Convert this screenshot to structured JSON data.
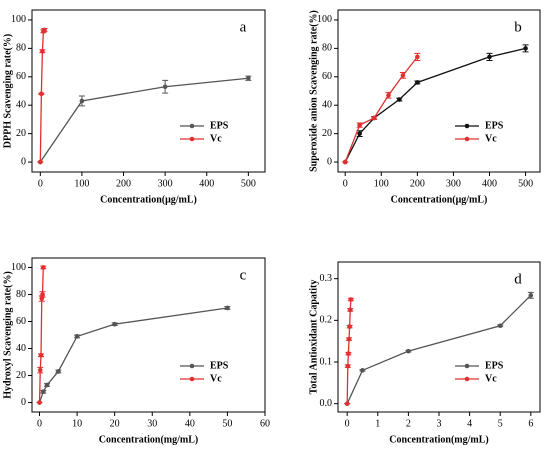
{
  "chart_data": [
    {
      "type": "line",
      "label": "a",
      "xlabel": "Concentration(μg/mL)",
      "ylabel": "DPPH Scavenging rate(%)",
      "xlim": [
        -20,
        540
      ],
      "xticks": [
        0,
        100,
        200,
        300,
        400,
        500
      ],
      "ylim": [
        -7,
        107
      ],
      "yticks": [
        0,
        20,
        40,
        60,
        80,
        100
      ],
      "legend": "lower right",
      "series": [
        {
          "name": "EPS",
          "color": "#555555",
          "x": [
            0,
            100,
            300,
            500
          ],
          "values": [
            0,
            43,
            53,
            59
          ],
          "errors": [
            0,
            3.5,
            4.5,
            1.5
          ]
        },
        {
          "name": "Vc",
          "color": "#e03030",
          "x": [
            0,
            2.5,
            5,
            7.5,
            10
          ],
          "values": [
            0,
            48,
            78,
            92,
            93
          ],
          "errors": [
            0,
            0.5,
            1,
            1,
            1
          ]
        }
      ]
    },
    {
      "type": "line",
      "label": "b",
      "xlabel": "Concentration(μg/mL)",
      "ylabel": "Superoxide anion Scavenging rate(%)",
      "xlim": [
        -20,
        540
      ],
      "xticks": [
        0,
        100,
        200,
        300,
        400,
        500
      ],
      "ylim": [
        -7,
        107
      ],
      "yticks": [
        0,
        20,
        40,
        60,
        80,
        100
      ],
      "legend": "lower right",
      "series": [
        {
          "name": "EPS",
          "color": "#111111",
          "x": [
            0,
            40,
            80,
            150,
            200,
            400,
            500
          ],
          "values": [
            0,
            20,
            31,
            44,
            56,
            74,
            80
          ],
          "errors": [
            0,
            2,
            1,
            1,
            1,
            2.5,
            2.5
          ]
        },
        {
          "name": "Vc",
          "color": "#e03030",
          "x": [
            0,
            40,
            80,
            120,
            160,
            200
          ],
          "values": [
            0,
            26,
            31,
            47,
            61,
            74
          ],
          "errors": [
            0,
            1.5,
            1,
            2,
            2,
            2.5
          ]
        }
      ]
    },
    {
      "type": "line",
      "label": "c",
      "xlabel": "Concentration(mg/mL)",
      "ylabel": "Hydroxyl Scavenging rate(%)",
      "xlim": [
        -2,
        60
      ],
      "xticks": [
        0,
        10,
        20,
        30,
        40,
        50,
        60
      ],
      "ylim": [
        -7,
        107
      ],
      "yticks": [
        0,
        20,
        40,
        60,
        80,
        100
      ],
      "legend": "lower right",
      "series": [
        {
          "name": "EPS",
          "color": "#555555",
          "x": [
            0,
            1,
            2,
            5,
            10,
            20,
            50
          ],
          "values": [
            0,
            8,
            13,
            23,
            49,
            58,
            70
          ],
          "errors": [
            0,
            1,
            1,
            1,
            1,
            1,
            1
          ]
        },
        {
          "name": "Vc",
          "color": "#e03030",
          "x": [
            0,
            0.2,
            0.4,
            0.6,
            0.8,
            1
          ],
          "values": [
            0,
            24,
            35,
            77,
            80,
            100
          ],
          "errors": [
            0,
            2,
            1,
            2,
            2,
            1
          ]
        }
      ]
    },
    {
      "type": "line",
      "label": "d",
      "xlabel": "Concentration(mg/mL)",
      "ylabel": "Total Antioxidant Capatity",
      "xlim": [
        -0.3,
        6.3
      ],
      "xticks": [
        0,
        1,
        2,
        3,
        4,
        5,
        6
      ],
      "ylim": [
        -0.02,
        0.34
      ],
      "yticks": [
        {
          "value": 0,
          "label": "0.0"
        },
        0.1,
        0.2,
        0.3
      ],
      "legend": "lower right",
      "series": [
        {
          "name": "EPS",
          "color": "#555555",
          "x": [
            0,
            0.5,
            2,
            5,
            6
          ],
          "values": [
            0,
            0.08,
            0.126,
            0.187,
            0.26
          ],
          "errors": [
            0,
            0.002,
            0.002,
            0.002,
            0.007
          ]
        },
        {
          "name": "Vc",
          "color": "#e03030",
          "x": [
            0,
            0.02,
            0.04,
            0.06,
            0.08,
            0.1,
            0.12
          ],
          "values": [
            0,
            0.09,
            0.12,
            0.155,
            0.185,
            0.225,
            0.25
          ],
          "errors": [
            0,
            0.003,
            0.003,
            0.003,
            0.003,
            0.003,
            0.003
          ]
        }
      ]
    }
  ]
}
